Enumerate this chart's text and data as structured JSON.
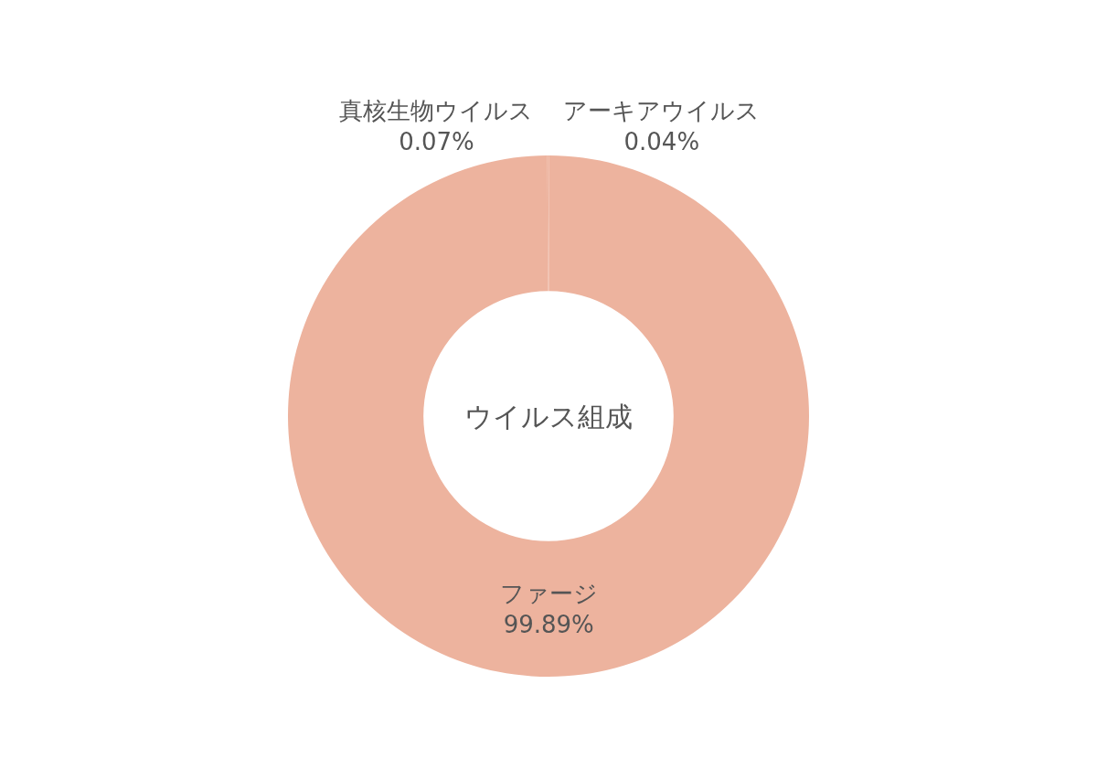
{
  "chart_data": {
    "type": "donut",
    "title": "ウイルス組成",
    "categories": [
      "アーキアウイルス",
      "ファージ",
      "真核生物ウイルス"
    ],
    "values": [
      0.04,
      99.89,
      0.07
    ],
    "value_labels": [
      "0.04%",
      "99.89%",
      "0.07%"
    ],
    "colors": [
      "#edb39e",
      "#edb39e",
      "#edb39e"
    ],
    "legend": false
  }
}
